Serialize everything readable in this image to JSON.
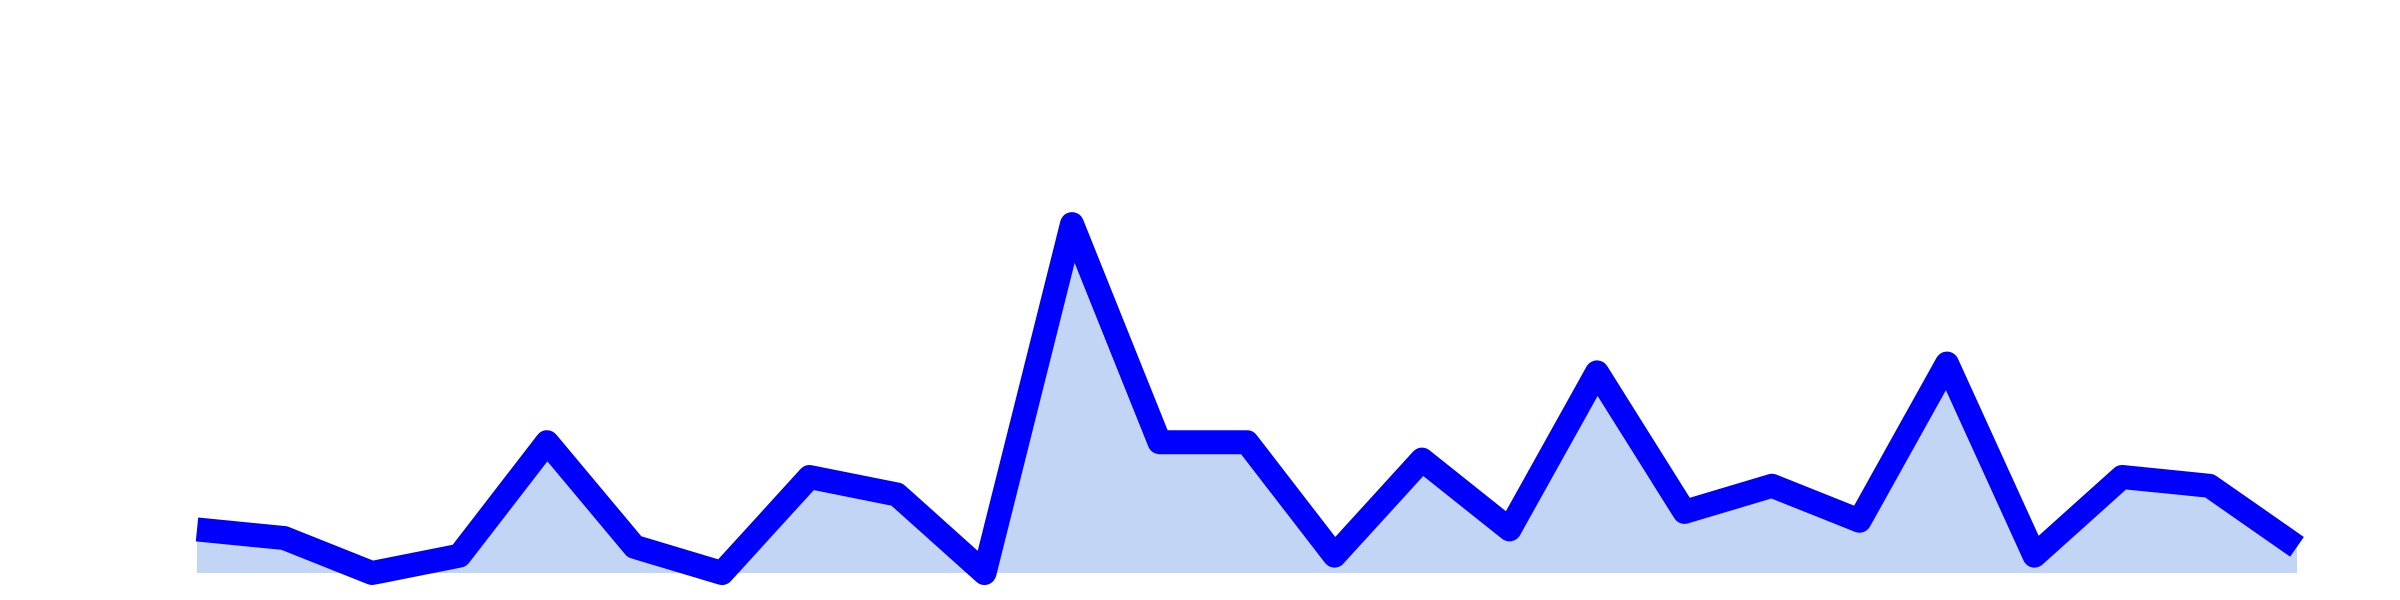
{
  "chart_data": {
    "type": "area",
    "x": [
      1,
      2,
      3,
      4,
      5,
      6,
      7,
      8,
      9,
      10,
      11,
      12,
      13,
      14,
      15,
      16,
      17,
      18,
      19,
      20,
      21,
      22,
      23,
      24,
      25
    ],
    "series": [
      {
        "values": [
          5,
          4,
          0,
          2,
          15,
          3,
          0,
          11,
          9,
          0,
          40,
          15,
          15,
          2,
          13,
          5,
          23,
          7,
          10,
          6,
          24,
          2,
          11,
          10,
          3
        ]
      }
    ],
    "ylim": [
      0,
      65
    ],
    "grid": false,
    "line_color": "#0000ff",
    "fill_color": "#c3d5f5"
  }
}
